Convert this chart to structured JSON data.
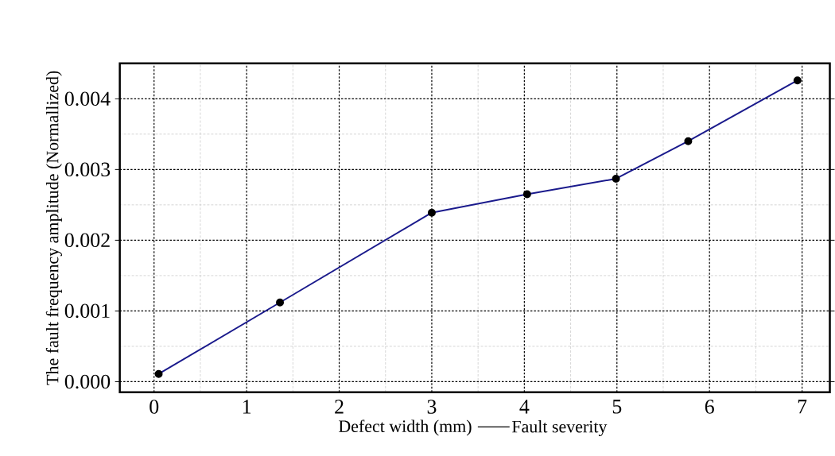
{
  "chart_data": {
    "type": "line",
    "xlabel": "Defect width (mm)",
    "ylabel": "The fault frequency amplitude (Normallized)",
    "x": [
      0.05,
      1.36,
      3.0,
      4.03,
      4.99,
      5.77,
      6.95
    ],
    "series": [
      {
        "name": "Fault severity",
        "color": "#1a1a8c",
        "values": [
          0.00011,
          0.00112,
          0.00239,
          0.00265,
          0.00287,
          0.0034,
          0.00426
        ]
      }
    ],
    "xlim": [
      -0.37,
      7.3
    ],
    "ylim": [
      -0.00015,
      0.0045
    ],
    "xticks": [
      0,
      1,
      2,
      3,
      4,
      5,
      6,
      7
    ],
    "yticks": [
      {
        "value": 0,
        "label": "0.000"
      },
      {
        "value": 0.001,
        "label": "0.001"
      },
      {
        "value": 0.002,
        "label": "0.002"
      },
      {
        "value": 0.003,
        "label": "0.003"
      },
      {
        "value": 0.004,
        "label": "0.004"
      }
    ],
    "grid": true,
    "legend": "bottom",
    "marker": "circle",
    "line_style": "solid"
  }
}
